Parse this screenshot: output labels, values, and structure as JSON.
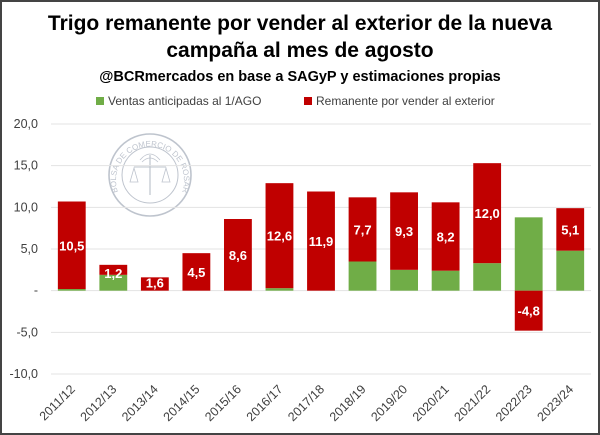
{
  "chart_data": {
    "type": "bar",
    "stacked": true,
    "title": "Trigo remanente por vender al exterior de la nueva",
    "title_line2": "campaña al mes de agosto",
    "subtitle": "@BCRmercados en base a SAGyP y estimaciones propias",
    "watermark": "BOLSA DE COMERCIO DE ROSARIO",
    "xlabel": "",
    "ylabel": "",
    "ylim": [
      -10,
      20
    ],
    "yticks": [
      20,
      15,
      10,
      5,
      0,
      -5,
      -10
    ],
    "ytick_labels": [
      "20,0",
      "15,0",
      "10,0",
      "5,0",
      "-",
      "-5,0",
      "-10,0"
    ],
    "grid": true,
    "legend_position": "top",
    "categories": [
      "2011/12",
      "2012/13",
      "2013/14",
      "2014/15",
      "2015/16",
      "2016/17",
      "2017/18",
      "2018/19",
      "2019/20",
      "2020/21",
      "2021/22",
      "2022/23",
      "2023/24"
    ],
    "series": [
      {
        "name": "Ventas anticipadas al 1/AGO",
        "color": "#70AD47",
        "values": [
          0.2,
          1.9,
          0.0,
          0.0,
          0.0,
          0.3,
          0.0,
          3.5,
          2.5,
          2.4,
          3.3,
          8.8,
          4.8
        ]
      },
      {
        "name": "Remanente por vender al exterior",
        "color": "#C00000",
        "values": [
          10.5,
          1.2,
          1.6,
          4.5,
          8.6,
          12.6,
          11.9,
          7.7,
          9.3,
          8.2,
          12.0,
          -4.8,
          5.1
        ],
        "labels": [
          "10,5",
          "1,2",
          "1,6",
          "4,5",
          "8,6",
          "12,6",
          "11,9",
          "7,7",
          "9,3",
          "8,2",
          "12,0",
          "-4,8",
          "5,1"
        ]
      }
    ]
  }
}
